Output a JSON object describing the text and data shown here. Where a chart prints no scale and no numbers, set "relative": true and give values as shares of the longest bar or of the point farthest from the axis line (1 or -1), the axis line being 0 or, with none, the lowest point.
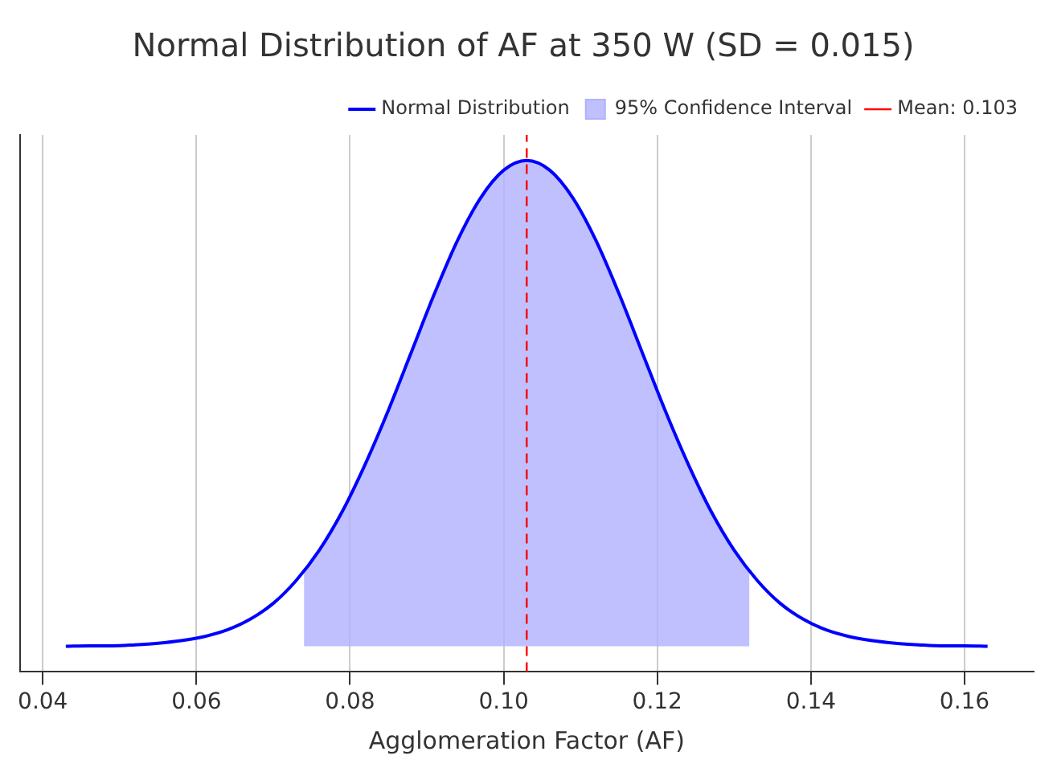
{
  "chart_data": {
    "type": "line",
    "title": "Normal Distribution of AF at 350 W (SD = 0.015)",
    "xlabel": "Agglomeration Factor (AF)",
    "relative": true,
    "x": [
      0.043,
      0.046,
      0.049,
      0.052,
      0.055,
      0.058,
      0.061,
      0.064,
      0.067,
      0.07,
      0.073,
      0.076,
      0.079,
      0.082,
      0.085,
      0.088,
      0.091,
      0.094,
      0.097,
      0.1,
      0.103,
      0.106,
      0.109,
      0.112,
      0.115,
      0.118,
      0.121,
      0.124,
      0.127,
      0.13,
      0.133,
      0.136,
      0.139,
      0.142,
      0.145,
      0.148,
      0.151,
      0.154,
      0.157,
      0.16,
      0.163
    ],
    "series": [
      {
        "name": "Normal Distribution",
        "color": "#0000ff",
        "values": [
          0.05,
          0.051,
          0.051,
          0.053,
          0.056,
          0.061,
          0.069,
          0.082,
          0.103,
          0.134,
          0.179,
          0.238,
          0.314,
          0.407,
          0.512,
          0.626,
          0.74,
          0.844,
          0.927,
          0.981,
          1.0,
          0.981,
          0.927,
          0.844,
          0.74,
          0.626,
          0.512,
          0.407,
          0.314,
          0.238,
          0.179,
          0.134,
          0.103,
          0.082,
          0.069,
          0.061,
          0.056,
          0.053,
          0.051,
          0.051,
          0.05
        ]
      },
      {
        "name": "95% Confidence Interval",
        "type": "area",
        "color": "#b0b0ff",
        "x": [
          0.074,
          0.076,
          0.079,
          0.082,
          0.085,
          0.088,
          0.091,
          0.094,
          0.097,
          0.1,
          0.103,
          0.106,
          0.109,
          0.112,
          0.115,
          0.118,
          0.121,
          0.124,
          0.127,
          0.13,
          0.132
        ],
        "values": [
          0.197,
          0.238,
          0.314,
          0.407,
          0.512,
          0.626,
          0.74,
          0.844,
          0.927,
          0.981,
          1.0,
          0.981,
          0.927,
          0.844,
          0.74,
          0.626,
          0.512,
          0.407,
          0.314,
          0.238,
          0.197
        ]
      }
    ],
    "ref_lines": [
      {
        "axis": "x",
        "value": 0.103,
        "label": "Mean: 0.103",
        "color": "#ff0000",
        "line_style": "dashed"
      }
    ],
    "xlim": [
      0.037,
      0.169
    ],
    "xticks": [
      0.04,
      0.06,
      0.08,
      {
        "value": 0.1,
        "label": "0.10"
      },
      0.12,
      0.14,
      0.16
    ],
    "grid": "x",
    "legend": "top right",
    "line_style": "solid",
    "marker": "none"
  }
}
